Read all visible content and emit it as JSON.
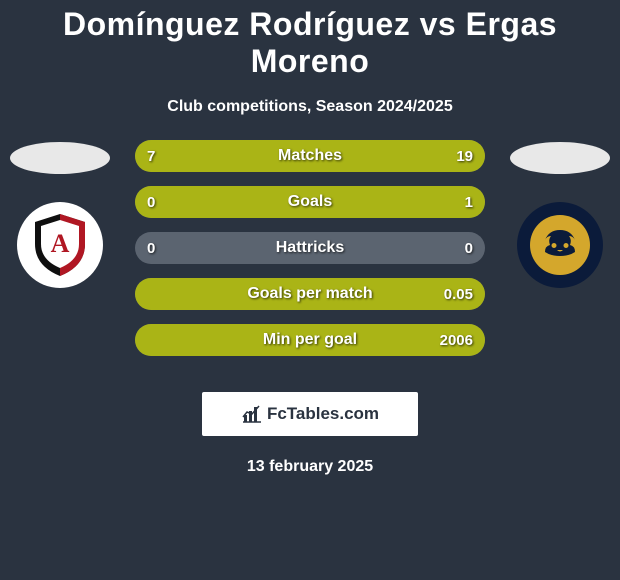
{
  "title": "Domínguez Rodríguez vs Ergas Moreno",
  "subtitle": "Club competitions, Season 2024/2025",
  "date": "13 february 2025",
  "brand": "FcTables.com",
  "colors": {
    "background": "#2a3340",
    "track": "#5b6470",
    "bar_left": "#aab416",
    "bar_right": "#aab416",
    "country_left": "#e8e8e8",
    "country_right": "#e8e8e8",
    "club_left_bg": "#ffffff",
    "club_right_bg": "#0b1b3a"
  },
  "left": {
    "club_primary": "#0f0f0f",
    "club_secondary": "#b01723",
    "club_letter": "A",
    "club_letter_color": "#b01723"
  },
  "right": {
    "club_primary": "#d4a72c",
    "club_letter": "",
    "club_letter_color": "#0b1b3a"
  },
  "stats": [
    {
      "label": "Matches",
      "left_val": "7",
      "right_val": "19",
      "left_pct": 27,
      "right_pct": 73
    },
    {
      "label": "Goals",
      "left_val": "0",
      "right_val": "1",
      "left_pct": 0,
      "right_pct": 100
    },
    {
      "label": "Hattricks",
      "left_val": "0",
      "right_val": "0",
      "left_pct": 0,
      "right_pct": 0
    },
    {
      "label": "Goals per match",
      "left_val": "",
      "right_val": "0.05",
      "left_pct": 0,
      "right_pct": 100
    },
    {
      "label": "Min per goal",
      "left_val": "",
      "right_val": "2006",
      "left_pct": 0,
      "right_pct": 100
    }
  ],
  "typography": {
    "title_fontsize": 32,
    "subtitle_fontsize": 16,
    "stat_label_fontsize": 16,
    "stat_val_fontsize": 15,
    "date_fontsize": 16
  }
}
